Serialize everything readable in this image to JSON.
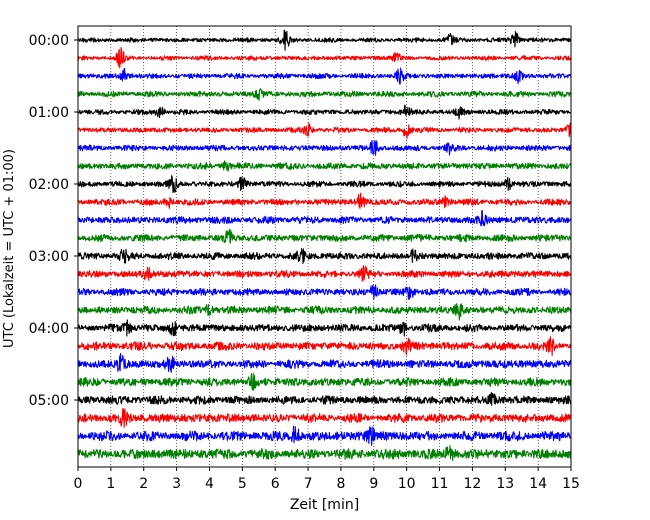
{
  "chart_data": {
    "type": "line",
    "title": "",
    "xlabel": "Zeit  [min]",
    "ylabel": "UTC (Lokalzeit = UTC + 01:00)",
    "xlim": [
      0,
      15
    ],
    "x_ticks": [
      0,
      1,
      2,
      3,
      4,
      5,
      6,
      7,
      8,
      9,
      10,
      11,
      12,
      13,
      14,
      15
    ],
    "y_tick_labels": [
      "00:00",
      "01:00",
      "02:00",
      "03:00",
      "04:00",
      "05:00"
    ],
    "trace_interval_minutes": 15,
    "grid": "vertical dotted at each minute",
    "legend": "none",
    "trace_color_cycle": [
      "#000000",
      "#ff0000",
      "#0000ff",
      "#008000"
    ],
    "traces": [
      {
        "start": "00:00",
        "amplitude": 0.35,
        "events": [
          {
            "t": 6.3,
            "amp": 1.6
          },
          {
            "t": 11.3,
            "amp": 1.0
          },
          {
            "t": 13.3,
            "amp": 1.4
          }
        ]
      },
      {
        "start": "00:15",
        "amplitude": 0.35,
        "events": [
          {
            "t": 1.3,
            "amp": 1.5
          },
          {
            "t": 9.7,
            "amp": 1.0
          }
        ]
      },
      {
        "start": "00:30",
        "amplitude": 0.4,
        "events": [
          {
            "t": 1.4,
            "amp": 1.0
          },
          {
            "t": 9.8,
            "amp": 1.3
          },
          {
            "t": 13.4,
            "amp": 1.0
          }
        ]
      },
      {
        "start": "00:45",
        "amplitude": 0.45,
        "events": [
          {
            "t": 5.5,
            "amp": 1.0
          }
        ]
      },
      {
        "start": "01:00",
        "amplitude": 0.4,
        "events": [
          {
            "t": 2.5,
            "amp": 1.0
          },
          {
            "t": 10.0,
            "amp": 1.2
          },
          {
            "t": 11.6,
            "amp": 1.0
          }
        ]
      },
      {
        "start": "01:15",
        "amplitude": 0.4,
        "events": [
          {
            "t": 7.0,
            "amp": 1.0
          },
          {
            "t": 10.0,
            "amp": 1.3
          },
          {
            "t": 15.0,
            "amp": 1.2
          }
        ]
      },
      {
        "start": "01:30",
        "amplitude": 0.45,
        "events": [
          {
            "t": 9.0,
            "amp": 1.3
          },
          {
            "t": 11.3,
            "amp": 0.9
          }
        ]
      },
      {
        "start": "01:45",
        "amplitude": 0.5,
        "events": [
          {
            "t": 4.5,
            "amp": 0.9
          }
        ]
      },
      {
        "start": "02:00",
        "amplitude": 0.45,
        "events": [
          {
            "t": 2.9,
            "amp": 1.3
          },
          {
            "t": 5.0,
            "amp": 1.0
          },
          {
            "t": 13.1,
            "amp": 0.9
          }
        ]
      },
      {
        "start": "02:15",
        "amplitude": 0.5,
        "events": [
          {
            "t": 2.8,
            "amp": 1.0
          },
          {
            "t": 8.6,
            "amp": 1.2
          },
          {
            "t": 11.2,
            "amp": 1.0
          }
        ]
      },
      {
        "start": "02:30",
        "amplitude": 0.55,
        "events": [
          {
            "t": 12.3,
            "amp": 1.3
          }
        ]
      },
      {
        "start": "02:45",
        "amplitude": 0.55,
        "events": [
          {
            "t": 4.6,
            "amp": 1.1
          }
        ]
      },
      {
        "start": "03:00",
        "amplitude": 0.55,
        "events": [
          {
            "t": 1.4,
            "amp": 1.0
          },
          {
            "t": 6.8,
            "amp": 1.0
          },
          {
            "t": 10.2,
            "amp": 1.0
          }
        ]
      },
      {
        "start": "03:15",
        "amplitude": 0.55,
        "events": [
          {
            "t": 2.1,
            "amp": 1.0
          },
          {
            "t": 8.7,
            "amp": 1.0
          }
        ]
      },
      {
        "start": "03:30",
        "amplitude": 0.55,
        "events": [
          {
            "t": 9.0,
            "amp": 1.0
          },
          {
            "t": 10.1,
            "amp": 1.0
          }
        ]
      },
      {
        "start": "03:45",
        "amplitude": 0.6,
        "events": [
          {
            "t": 11.6,
            "amp": 1.3
          },
          {
            "t": 4.0,
            "amp": 1.0
          }
        ]
      },
      {
        "start": "04:00",
        "amplitude": 0.6,
        "events": [
          {
            "t": 1.5,
            "amp": 1.0
          },
          {
            "t": 2.9,
            "amp": 1.2
          },
          {
            "t": 9.9,
            "amp": 1.1
          }
        ]
      },
      {
        "start": "04:15",
        "amplitude": 0.65,
        "events": [
          {
            "t": 10.0,
            "amp": 1.0
          },
          {
            "t": 14.4,
            "amp": 1.1
          }
        ]
      },
      {
        "start": "04:30",
        "amplitude": 0.65,
        "events": [
          {
            "t": 1.3,
            "amp": 1.3
          },
          {
            "t": 2.8,
            "amp": 1.1
          }
        ]
      },
      {
        "start": "04:45",
        "amplitude": 0.65,
        "events": [
          {
            "t": 5.3,
            "amp": 1.0
          }
        ]
      },
      {
        "start": "05:00",
        "amplitude": 0.65,
        "events": [
          {
            "t": 12.6,
            "amp": 0.9
          }
        ]
      },
      {
        "start": "05:15",
        "amplitude": 0.7,
        "events": [
          {
            "t": 1.4,
            "amp": 1.2
          }
        ]
      },
      {
        "start": "05:30",
        "amplitude": 0.75,
        "events": [
          {
            "t": 6.6,
            "amp": 1.4
          },
          {
            "t": 8.9,
            "amp": 1.4
          }
        ]
      },
      {
        "start": "05:45",
        "amplitude": 0.8,
        "events": [
          {
            "t": 11.3,
            "amp": 1.0
          }
        ]
      }
    ]
  }
}
